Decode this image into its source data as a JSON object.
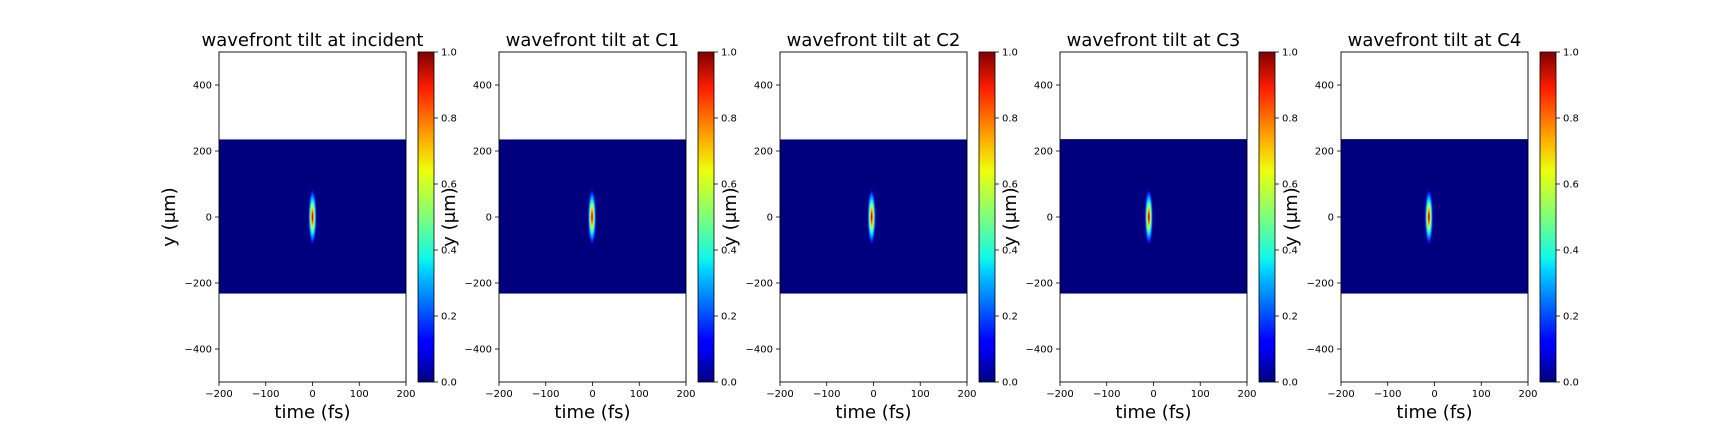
{
  "chart_data": [
    {
      "type": "heatmap",
      "title": "wavefront tilt at incident",
      "xlabel": "time (fs)",
      "ylabel": "y (μm)",
      "xlim": [
        -200,
        200
      ],
      "ylim": [
        -500,
        500
      ],
      "xticks": [
        "−200",
        "−100",
        "0",
        "100",
        "200"
      ],
      "yticks": [
        "−400",
        "−200",
        "0",
        "200",
        "400"
      ],
      "data_extent_y": [
        -232,
        235
      ],
      "peak": {
        "t": 0,
        "y": 0,
        "value": 1.0,
        "sigma_t": 3,
        "sigma_y": 28
      },
      "colorbar": {
        "colormap": "jet",
        "range": [
          0.0,
          1.0
        ],
        "ticks": [
          "0.0",
          "0.2",
          "0.4",
          "0.6",
          "0.8",
          "1.0"
        ]
      }
    },
    {
      "type": "heatmap",
      "title": "wavefront tilt at C1",
      "xlabel": "time (fs)",
      "ylabel": "y (μm)",
      "xlim": [
        -200,
        200
      ],
      "ylim": [
        -500,
        500
      ],
      "xticks": [
        "−200",
        "−100",
        "0",
        "100",
        "200"
      ],
      "yticks": [
        "−400",
        "−200",
        "0",
        "200",
        "400"
      ],
      "data_extent_y": [
        -232,
        235
      ],
      "peak": {
        "t": -1,
        "y": 0,
        "value": 1.0,
        "sigma_t": 3,
        "sigma_y": 28
      },
      "colorbar": {
        "colormap": "jet",
        "range": [
          0.0,
          1.0
        ],
        "ticks": [
          "0.0",
          "0.2",
          "0.4",
          "0.6",
          "0.8",
          "1.0"
        ]
      }
    },
    {
      "type": "heatmap",
      "title": "wavefront tilt at C2",
      "xlabel": "time (fs)",
      "ylabel": "y (μm)",
      "xlim": [
        -200,
        200
      ],
      "ylim": [
        -500,
        500
      ],
      "xticks": [
        "−200",
        "−100",
        "0",
        "100",
        "200"
      ],
      "yticks": [
        "−400",
        "−200",
        "0",
        "200",
        "400"
      ],
      "data_extent_y": [
        -232,
        235
      ],
      "peak": {
        "t": -4,
        "y": 0,
        "value": 1.0,
        "sigma_t": 3,
        "sigma_y": 28
      },
      "colorbar": {
        "colormap": "jet",
        "range": [
          0.0,
          1.0
        ],
        "ticks": [
          "0.0",
          "0.2",
          "0.4",
          "0.6",
          "0.8",
          "1.0"
        ]
      }
    },
    {
      "type": "heatmap",
      "title": "wavefront tilt at C3",
      "xlabel": "time (fs)",
      "ylabel": "y (μm)",
      "xlim": [
        -200,
        200
      ],
      "ylim": [
        -500,
        500
      ],
      "xticks": [
        "−200",
        "−100",
        "0",
        "100",
        "200"
      ],
      "yticks": [
        "−400",
        "−200",
        "0",
        "200",
        "400"
      ],
      "data_extent_y": [
        -232,
        236
      ],
      "peak": {
        "t": -10,
        "y": 0,
        "value": 1.0,
        "sigma_t": 3,
        "sigma_y": 28
      },
      "colorbar": {
        "colormap": "jet",
        "range": [
          0.0,
          1.0
        ],
        "ticks": [
          "0.0",
          "0.2",
          "0.4",
          "0.6",
          "0.8",
          "1.0"
        ]
      }
    },
    {
      "type": "heatmap",
      "title": "wavefront tilt at C4",
      "xlabel": "time (fs)",
      "ylabel": "y (μm)",
      "xlim": [
        -200,
        200
      ],
      "ylim": [
        -500,
        500
      ],
      "xticks": [
        "−200",
        "−100",
        "0",
        "100",
        "200"
      ],
      "yticks": [
        "−400",
        "−200",
        "0",
        "200",
        "400"
      ],
      "data_extent_y": [
        -232,
        236
      ],
      "peak": {
        "t": -12,
        "y": 0,
        "value": 1.0,
        "sigma_t": 3,
        "sigma_y": 28
      },
      "colorbar": {
        "colormap": "jet",
        "range": [
          0.0,
          1.0
        ],
        "ticks": [
          "0.0",
          "0.2",
          "0.4",
          "0.6",
          "0.8",
          "1.0"
        ]
      }
    }
  ]
}
